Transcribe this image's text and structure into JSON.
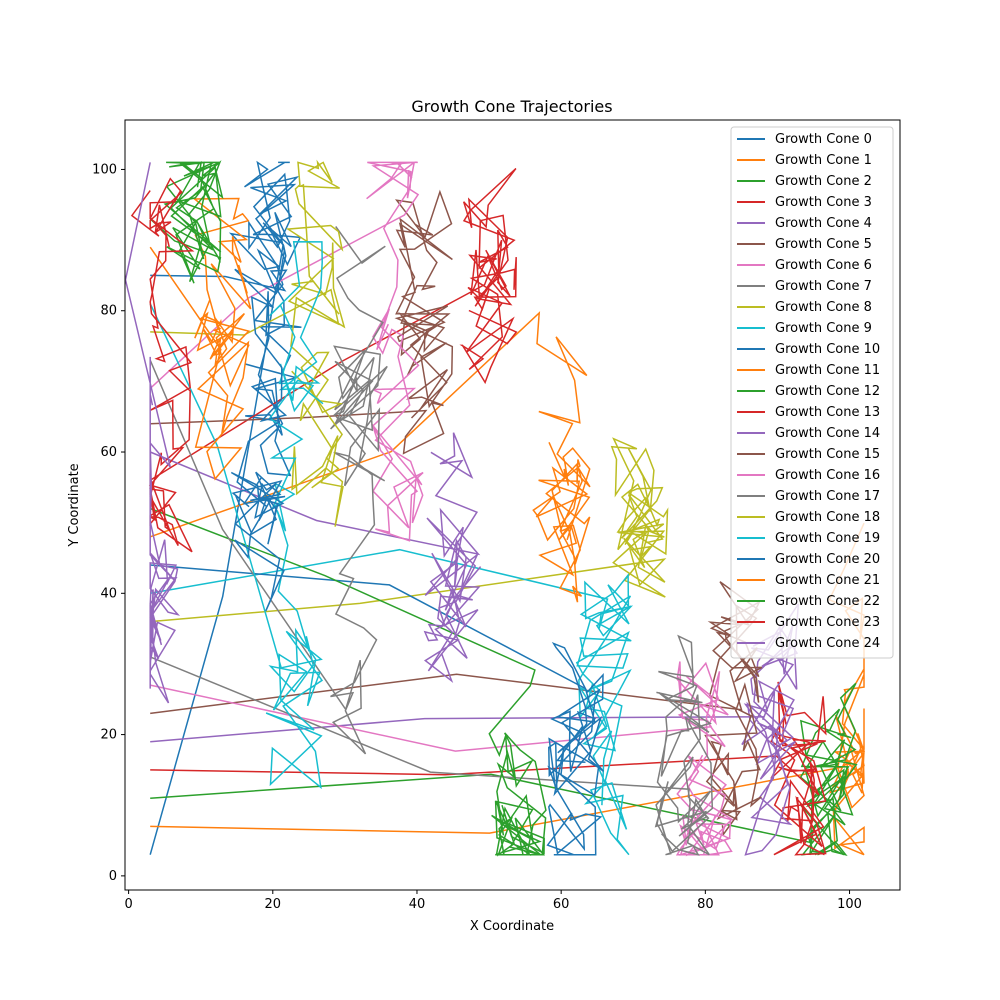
{
  "chart_data": {
    "type": "line",
    "title": "Growth Cone Trajectories",
    "xlabel": "X Coordinate",
    "ylabel": "Y Coordinate",
    "xlim": [
      -0.5,
      107
    ],
    "ylim": [
      -2,
      107
    ],
    "xticks": [
      0,
      20,
      40,
      60,
      80,
      100
    ],
    "yticks": [
      0,
      20,
      40,
      60,
      80,
      100
    ],
    "grid": false,
    "legend_position": "top-right",
    "colors": [
      "#1f77b4",
      "#ff7f0e",
      "#2ca02c",
      "#d62728",
      "#9467bd",
      "#8c564b",
      "#e377c2",
      "#7f7f7f",
      "#bcbd22",
      "#17becf"
    ],
    "series": [
      {
        "name": "Growth Cone 0",
        "start": [
          3,
          3
        ],
        "end": [
          20,
          80
        ]
      },
      {
        "name": "Growth Cone 1",
        "start": [
          3,
          7
        ],
        "end": [
          101,
          15
        ]
      },
      {
        "name": "Growth Cone 2",
        "start": [
          3,
          11
        ],
        "end": [
          97,
          10
        ]
      },
      {
        "name": "Growth Cone 3",
        "start": [
          3,
          15
        ],
        "end": [
          93,
          20
        ]
      },
      {
        "name": "Growth Cone 4",
        "start": [
          3,
          19
        ],
        "end": [
          89,
          28
        ]
      },
      {
        "name": "Growth Cone 5",
        "start": [
          3,
          23
        ],
        "end": [
          84,
          25
        ]
      },
      {
        "name": "Growth Cone 6",
        "start": [
          3,
          27
        ],
        "end": [
          80,
          15
        ]
      },
      {
        "name": "Growth Cone 7",
        "start": [
          3,
          31
        ],
        "end": [
          77,
          8
        ]
      },
      {
        "name": "Growth Cone 8",
        "start": [
          3,
          36
        ],
        "end": [
          71,
          40
        ]
      },
      {
        "name": "Growth Cone 9",
        "start": [
          3,
          40
        ],
        "end": [
          66,
          45
        ]
      },
      {
        "name": "Growth Cone 10",
        "start": [
          3,
          44
        ],
        "end": [
          62,
          30
        ]
      },
      {
        "name": "Growth Cone 11",
        "start": [
          3,
          48
        ],
        "end": [
          60,
          75
        ]
      },
      {
        "name": "Growth Cone 12",
        "start": [
          3,
          52
        ],
        "end": [
          54,
          25
        ]
      },
      {
        "name": "Growth Cone 13",
        "start": [
          3,
          56
        ],
        "end": [
          50,
          80
        ]
      },
      {
        "name": "Growth Cone 14",
        "start": [
          3,
          60
        ],
        "end": [
          45,
          45
        ]
      },
      {
        "name": "Growth Cone 15",
        "start": [
          3,
          64
        ],
        "end": [
          41,
          65
        ]
      },
      {
        "name": "Growth Cone 16",
        "start": [
          3,
          69
        ],
        "end": [
          37,
          95
        ]
      },
      {
        "name": "Growth Cone 17",
        "start": [
          3,
          73
        ],
        "end": [
          32,
          25
        ]
      },
      {
        "name": "Growth Cone 18",
        "start": [
          3,
          77
        ],
        "end": [
          26,
          85
        ]
      },
      {
        "name": "Growth Cone 19",
        "start": [
          3,
          81
        ],
        "end": [
          23,
          35
        ]
      },
      {
        "name": "Growth Cone 20",
        "start": [
          3,
          85
        ],
        "end": [
          18,
          78
        ]
      },
      {
        "name": "Growth Cone 21",
        "start": [
          3,
          89
        ],
        "end": [
          13,
          55
        ]
      },
      {
        "name": "Growth Cone 22",
        "start": [
          3,
          93
        ],
        "end": [
          9,
          93
        ]
      },
      {
        "name": "Growth Cone 23",
        "start": [
          3,
          97
        ],
        "end": [
          5,
          85
        ]
      },
      {
        "name": "Growth Cone 24",
        "start": [
          3,
          101
        ],
        "end": [
          3,
          60
        ]
      }
    ]
  }
}
